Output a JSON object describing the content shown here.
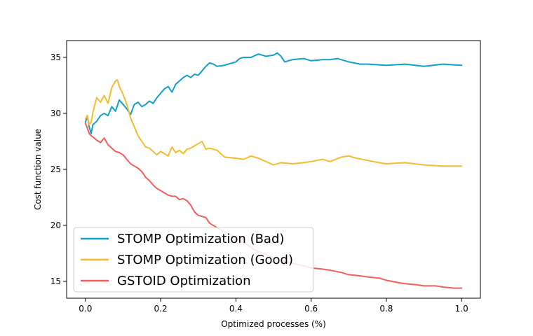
{
  "chart_data": {
    "type": "line",
    "xlabel": "Optimized processes (%)",
    "ylabel": "Cost function value",
    "xlim": [
      -0.05,
      1.05
    ],
    "ylim": [
      13.5,
      36.5
    ],
    "xticks": [
      0.0,
      0.2,
      0.4,
      0.6,
      0.8,
      1.0
    ],
    "xtick_labels": [
      "0.0",
      "0.2",
      "0.4",
      "0.6",
      "0.8",
      "1.0"
    ],
    "yticks": [
      15,
      20,
      25,
      30,
      35
    ],
    "ytick_labels": [
      "15",
      "20",
      "25",
      "30",
      "35"
    ],
    "grid": false,
    "legend_position": "lower-left",
    "series": [
      {
        "name": "STOMP Optimization (Bad)",
        "color": "#0ea1c9",
        "x": [
          0.0,
          0.005,
          0.01,
          0.015,
          0.02,
          0.03,
          0.04,
          0.05,
          0.06,
          0.07,
          0.08,
          0.09,
          0.1,
          0.11,
          0.12,
          0.13,
          0.14,
          0.15,
          0.16,
          0.17,
          0.18,
          0.19,
          0.2,
          0.21,
          0.22,
          0.23,
          0.24,
          0.25,
          0.26,
          0.27,
          0.28,
          0.29,
          0.3,
          0.31,
          0.32,
          0.33,
          0.34,
          0.35,
          0.37,
          0.39,
          0.4,
          0.41,
          0.42,
          0.44,
          0.46,
          0.48,
          0.5,
          0.51,
          0.52,
          0.53,
          0.55,
          0.58,
          0.6,
          0.63,
          0.65,
          0.67,
          0.7,
          0.73,
          0.75,
          0.8,
          0.85,
          0.9,
          0.95,
          1.0
        ],
        "y": [
          29.2,
          29.8,
          28.8,
          28.2,
          29.0,
          29.3,
          29.8,
          30.0,
          29.8,
          30.6,
          30.2,
          31.2,
          30.8,
          30.4,
          29.9,
          30.8,
          31.0,
          30.6,
          30.8,
          31.1,
          30.9,
          31.4,
          31.8,
          32.2,
          32.4,
          31.9,
          32.6,
          32.9,
          33.2,
          33.4,
          33.2,
          33.5,
          33.4,
          33.8,
          34.2,
          34.5,
          34.4,
          34.2,
          34.3,
          34.5,
          34.6,
          34.9,
          35.0,
          35.0,
          35.3,
          35.1,
          35.2,
          35.4,
          35.1,
          34.6,
          34.8,
          34.9,
          34.7,
          34.8,
          34.8,
          34.9,
          34.6,
          34.4,
          34.4,
          34.3,
          34.4,
          34.2,
          34.4,
          34.3
        ]
      },
      {
        "name": "STOMP Optimization (Good)",
        "color": "#f5bb2c",
        "x": [
          0.0,
          0.005,
          0.01,
          0.015,
          0.02,
          0.03,
          0.04,
          0.05,
          0.06,
          0.07,
          0.08,
          0.085,
          0.09,
          0.1,
          0.11,
          0.12,
          0.13,
          0.14,
          0.15,
          0.16,
          0.17,
          0.18,
          0.19,
          0.2,
          0.21,
          0.22,
          0.23,
          0.24,
          0.25,
          0.26,
          0.27,
          0.28,
          0.29,
          0.3,
          0.31,
          0.32,
          0.33,
          0.35,
          0.37,
          0.4,
          0.42,
          0.44,
          0.46,
          0.48,
          0.5,
          0.52,
          0.55,
          0.58,
          0.6,
          0.63,
          0.65,
          0.68,
          0.7,
          0.72,
          0.75,
          0.78,
          0.8,
          0.85,
          0.9,
          0.95,
          1.0
        ],
        "y": [
          29.5,
          29.8,
          29.0,
          29.2,
          30.1,
          31.4,
          31.0,
          31.6,
          30.9,
          32.3,
          32.9,
          33.0,
          32.4,
          31.7,
          30.8,
          29.6,
          28.8,
          28.0,
          27.5,
          27.0,
          26.9,
          26.6,
          26.3,
          26.6,
          26.4,
          26.2,
          27.0,
          26.5,
          26.7,
          26.4,
          26.8,
          26.9,
          27.1,
          27.3,
          27.5,
          26.8,
          26.9,
          26.7,
          26.1,
          26.0,
          25.9,
          26.2,
          26.0,
          25.7,
          25.4,
          25.6,
          25.5,
          25.6,
          25.7,
          25.9,
          25.7,
          26.1,
          26.2,
          26.0,
          25.8,
          25.6,
          25.5,
          25.6,
          25.4,
          25.3,
          25.3
        ]
      },
      {
        "name": "GSTOID Optimization",
        "color": "#f25d5d",
        "x": [
          0.0,
          0.005,
          0.01,
          0.015,
          0.02,
          0.03,
          0.04,
          0.05,
          0.06,
          0.07,
          0.08,
          0.09,
          0.1,
          0.11,
          0.12,
          0.13,
          0.14,
          0.15,
          0.16,
          0.17,
          0.18,
          0.19,
          0.2,
          0.21,
          0.22,
          0.23,
          0.24,
          0.25,
          0.26,
          0.27,
          0.28,
          0.29,
          0.3,
          0.31,
          0.32,
          0.33,
          0.35,
          0.37,
          0.4,
          0.43,
          0.45,
          0.48,
          0.5,
          0.53,
          0.55,
          0.58,
          0.6,
          0.63,
          0.65,
          0.68,
          0.7,
          0.73,
          0.75,
          0.78,
          0.8,
          0.83,
          0.85,
          0.88,
          0.9,
          0.93,
          0.95,
          0.98,
          1.0
        ],
        "y": [
          29.1,
          28.7,
          28.2,
          28.0,
          27.9,
          27.6,
          27.4,
          27.8,
          27.2,
          26.9,
          26.6,
          26.5,
          26.3,
          25.9,
          25.5,
          25.3,
          25.1,
          24.8,
          24.3,
          24.0,
          23.6,
          23.3,
          23.1,
          22.9,
          22.7,
          22.6,
          22.6,
          22.3,
          22.4,
          22.2,
          21.8,
          21.2,
          20.9,
          20.8,
          20.7,
          20.2,
          19.8,
          19.4,
          18.9,
          18.3,
          17.8,
          17.4,
          17.1,
          16.8,
          16.6,
          16.4,
          16.2,
          16.1,
          16.0,
          15.8,
          15.6,
          15.5,
          15.4,
          15.3,
          15.1,
          14.9,
          14.8,
          14.7,
          14.6,
          14.6,
          14.5,
          14.4,
          14.4
        ]
      }
    ]
  }
}
